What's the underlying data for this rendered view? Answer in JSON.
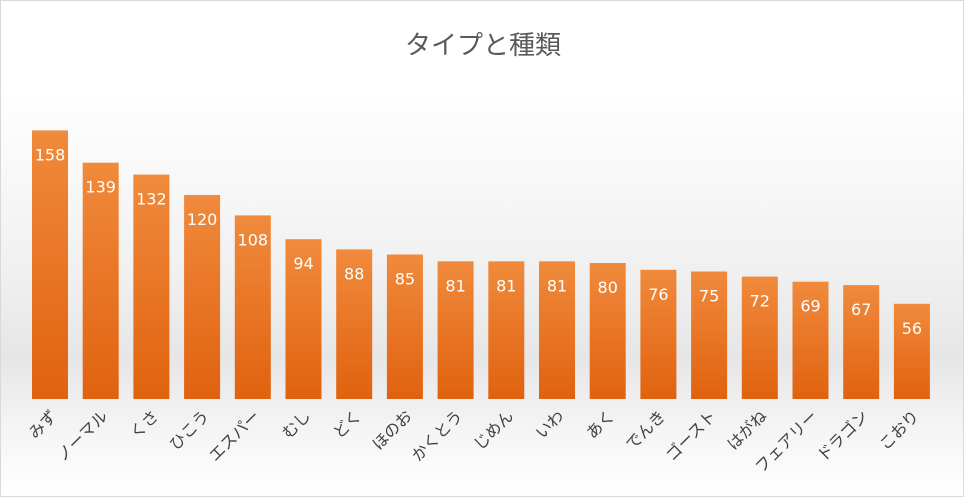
{
  "chart_data": {
    "type": "bar",
    "title": "タイプと種類",
    "categories": [
      "みず",
      "ノーマル",
      "くさ",
      "ひこう",
      "エスパー",
      "むし",
      "どく",
      "ほのお",
      "かくとう",
      "じめん",
      "いわ",
      "あく",
      "でんき",
      "ゴースト",
      "はがね",
      "フェアリー",
      "ドラゴン",
      "こおり"
    ],
    "values": [
      158,
      139,
      132,
      120,
      108,
      94,
      88,
      85,
      81,
      81,
      81,
      80,
      76,
      75,
      72,
      69,
      67,
      56
    ],
    "xlabel": "",
    "ylabel": "",
    "ylim": [
      0,
      170
    ],
    "grid": false,
    "legend": "none",
    "data_labels": true,
    "bar_color_top": "#f08a3c",
    "bar_color_bottom": "#e0620f"
  }
}
